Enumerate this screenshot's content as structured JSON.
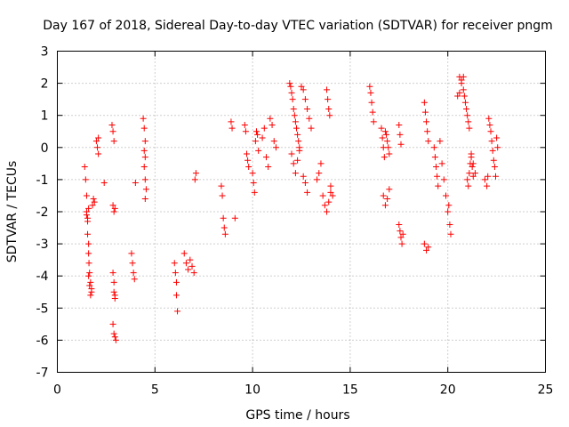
{
  "chart_data": {
    "type": "scatter",
    "title": "Day 167 of 2018, Sidereal Day-to-day VTEC variation (SDTVAR) for receiver pngm",
    "xlabel": "GPS time / hours",
    "ylabel": "SDTVAR / TECUs",
    "xlim": [
      0,
      25
    ],
    "ylim": [
      -7,
      3
    ],
    "xticks": [
      0,
      5,
      10,
      15,
      20,
      25
    ],
    "yticks": [
      -7,
      -6,
      -5,
      -4,
      -3,
      -2,
      -1,
      0,
      1,
      2,
      3
    ],
    "grid": true,
    "marker": "plus",
    "color": "#ff0000",
    "series": [
      {
        "name": "SDTVAR",
        "x": [
          1.4,
          1.45,
          1.5,
          1.5,
          1.55,
          1.55,
          1.6,
          1.6,
          1.62,
          1.65,
          1.7,
          1.75,
          1.8,
          1.85,
          1.9,
          1.5,
          1.55,
          1.6,
          1.6,
          1.65,
          1.7,
          1.75,
          2.0,
          2.05,
          2.1,
          2.1,
          2.4,
          2.8,
          2.85,
          2.9,
          2.85,
          2.9,
          2.95,
          2.9,
          2.95,
          2.85,
          2.9,
          2.95,
          2.85,
          2.9,
          2.95,
          3.0,
          3.8,
          3.85,
          3.9,
          3.95,
          4.0,
          4.4,
          4.45,
          4.5,
          4.45,
          4.5,
          4.45,
          4.5,
          4.55,
          4.5,
          6.0,
          6.05,
          6.1,
          6.1,
          6.15,
          6.5,
          6.6,
          6.7,
          6.8,
          6.9,
          7.0,
          7.05,
          7.1,
          8.4,
          8.45,
          8.5,
          8.55,
          8.6,
          8.9,
          8.95,
          9.1,
          9.6,
          9.65,
          9.7,
          9.75,
          9.8,
          10.0,
          10.05,
          10.1,
          10.15,
          10.2,
          10.25,
          10.3,
          10.5,
          10.6,
          10.7,
          10.8,
          10.9,
          11.0,
          11.1,
          11.2,
          11.9,
          11.95,
          12.0,
          12.05,
          12.1,
          12.15,
          12.2,
          12.25,
          12.3,
          12.35,
          12.4,
          12.0,
          12.1,
          12.2,
          12.3,
          12.4,
          12.5,
          12.6,
          12.7,
          12.8,
          12.9,
          13.0,
          12.6,
          12.7,
          12.8,
          13.3,
          13.4,
          13.5,
          13.6,
          13.7,
          13.8,
          13.85,
          13.9,
          13.95,
          14.0,
          14.1,
          13.8,
          13.9,
          14.0,
          16.0,
          16.05,
          16.1,
          16.15,
          16.2,
          16.6,
          16.65,
          16.7,
          16.75,
          16.8,
          16.85,
          16.9,
          16.95,
          17.0,
          16.7,
          16.8,
          16.9,
          17.0,
          17.5,
          17.55,
          17.6,
          17.65,
          17.7,
          17.5,
          17.55,
          17.6,
          18.8,
          18.85,
          18.9,
          18.95,
          19.0,
          18.8,
          18.9,
          19.0,
          19.3,
          19.35,
          19.4,
          19.45,
          19.5,
          19.6,
          19.7,
          19.8,
          19.9,
          20.0,
          20.05,
          20.1,
          20.15,
          20.6,
          20.7,
          20.8,
          20.85,
          20.9,
          20.95,
          21.0,
          21.05,
          21.1,
          21.2,
          21.3,
          21.4,
          21.0,
          21.05,
          21.1,
          21.15,
          21.2,
          21.25,
          21.3,
          20.5,
          20.6,
          20.7,
          20.8,
          21.9,
          22.0,
          22.05,
          22.1,
          22.15,
          22.2,
          22.25,
          22.3,
          22.35,
          22.4,
          22.45,
          22.5,
          22.55
        ],
        "y": [
          -0.6,
          -1.0,
          -1.5,
          -2.0,
          -2.3,
          -2.7,
          -3.0,
          -3.3,
          -3.6,
          -3.9,
          -4.2,
          -4.5,
          -1.8,
          -1.6,
          -1.7,
          -2.1,
          -2.2,
          -1.9,
          -4.0,
          -4.3,
          -4.6,
          -4.4,
          0.2,
          0.0,
          -0.2,
          0.3,
          -1.1,
          0.7,
          0.5,
          0.2,
          -1.8,
          -2.0,
          -1.9,
          -4.5,
          -4.7,
          -3.9,
          -4.2,
          -4.6,
          -5.5,
          -5.8,
          -5.9,
          -6.0,
          -3.3,
          -3.6,
          -3.9,
          -4.1,
          -1.1,
          0.9,
          0.6,
          0.2,
          -0.1,
          -0.3,
          -0.6,
          -1.0,
          -1.3,
          -1.6,
          -3.6,
          -3.9,
          -4.2,
          -4.6,
          -5.1,
          -3.3,
          -3.6,
          -3.8,
          -3.5,
          -3.7,
          -3.9,
          -1.0,
          -0.8,
          -1.2,
          -1.5,
          -2.2,
          -2.5,
          -2.7,
          0.8,
          0.6,
          -2.2,
          0.7,
          0.5,
          -0.2,
          -0.4,
          -0.6,
          -0.8,
          -1.1,
          -1.4,
          0.2,
          0.5,
          0.4,
          -0.1,
          0.3,
          0.6,
          -0.3,
          -0.6,
          0.9,
          0.7,
          0.2,
          0.0,
          2.0,
          1.9,
          1.7,
          1.5,
          1.2,
          1.0,
          0.8,
          0.6,
          0.4,
          0.2,
          0.0,
          -0.2,
          -0.5,
          -0.8,
          -0.4,
          -0.1,
          1.9,
          1.8,
          1.5,
          1.2,
          0.9,
          0.6,
          -0.9,
          -1.1,
          -1.4,
          -1.0,
          -0.8,
          -0.5,
          -1.5,
          -1.8,
          1.8,
          1.5,
          1.2,
          1.0,
          -1.2,
          -1.5,
          -2.0,
          -1.7,
          -1.4,
          1.9,
          1.7,
          1.4,
          1.1,
          0.8,
          0.6,
          0.3,
          0.0,
          -0.3,
          0.5,
          0.4,
          0.2,
          0.0,
          -0.2,
          -1.5,
          -1.8,
          -1.6,
          -1.3,
          -2.4,
          -2.6,
          -2.8,
          -3.0,
          -2.7,
          0.7,
          0.4,
          0.1,
          1.4,
          1.1,
          0.8,
          0.5,
          0.2,
          -3.0,
          -3.2,
          -3.1,
          0.0,
          -0.3,
          -0.6,
          -0.9,
          -1.2,
          0.2,
          -0.5,
          -1.0,
          -1.5,
          -2.0,
          -1.8,
          -2.4,
          -2.7,
          2.2,
          2.0,
          1.8,
          1.6,
          1.4,
          1.2,
          1.0,
          0.8,
          0.6,
          -0.2,
          -0.5,
          -0.8,
          -1.0,
          -1.2,
          -0.8,
          -0.5,
          -0.3,
          -0.6,
          -0.9,
          1.6,
          1.7,
          2.1,
          2.2,
          -1.0,
          -1.2,
          -0.9,
          0.9,
          0.7,
          0.5,
          0.2,
          -0.1,
          -0.4,
          -0.6,
          -0.9,
          0.3,
          0.0
        ]
      }
    ]
  }
}
